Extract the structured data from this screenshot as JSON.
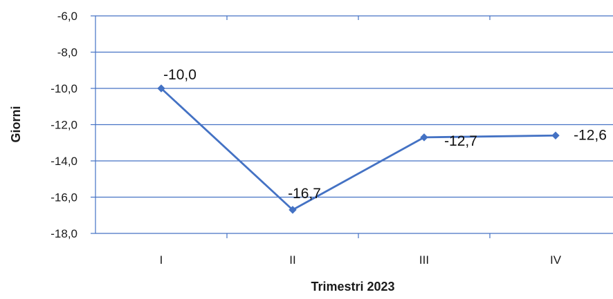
{
  "chart_data": {
    "type": "line",
    "categories": [
      "I",
      "II",
      "III",
      "IV"
    ],
    "series": [
      {
        "values": [
          -10.0,
          -16.7,
          -12.7,
          -12.6
        ],
        "labels": [
          "-10,0",
          "-16,7",
          "-12,7",
          "-12,6"
        ]
      }
    ],
    "title": "",
    "xlabel": "Trimestri 2023",
    "ylabel": "Giorni",
    "ylim": [
      -18.0,
      -6.0
    ],
    "yticks": [
      -6.0,
      -8.0,
      -10.0,
      -12.0,
      -14.0,
      -16.0,
      -18.0
    ],
    "ytick_labels": [
      "-6,0",
      "-8,0",
      "-10,0",
      "-12,0",
      "-14,0",
      "-16,0",
      "-18,0"
    ],
    "grid": true,
    "legend": "none",
    "colors": {
      "line": "#4472C4",
      "grid": "#4472C4",
      "axis": "#4472C4"
    },
    "marker": "diamond"
  }
}
